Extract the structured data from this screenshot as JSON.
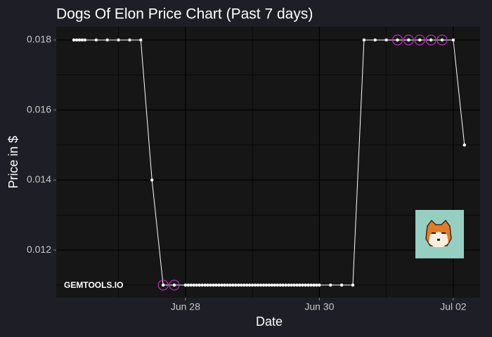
{
  "chart_data": {
    "type": "line",
    "title": "Dogs Of Elon Price Chart (Past 7 days)",
    "x_label": "Date",
    "y_label": "Price in $",
    "watermark": "GEMTOOLS.IO",
    "x": [
      26.333,
      26.375,
      26.417,
      26.458,
      26.5,
      26.667,
      26.833,
      27.0,
      27.167,
      27.333,
      27.5,
      27.667,
      27.833,
      28.0,
      28.042,
      28.083,
      28.125,
      28.167,
      28.208,
      28.25,
      28.292,
      28.333,
      28.375,
      28.417,
      28.458,
      28.5,
      28.542,
      28.583,
      28.625,
      28.667,
      28.708,
      28.75,
      28.792,
      28.833,
      28.875,
      28.917,
      28.958,
      29.0,
      29.042,
      29.083,
      29.125,
      29.167,
      29.208,
      29.25,
      29.292,
      29.333,
      29.375,
      29.417,
      29.458,
      29.5,
      29.542,
      29.583,
      29.625,
      29.667,
      29.708,
      29.75,
      29.792,
      29.833,
      29.875,
      29.917,
      29.958,
      30.0,
      30.167,
      30.333,
      30.5,
      30.667,
      30.833,
      31.0,
      31.167,
      31.333,
      31.5,
      31.667,
      31.833,
      32.0,
      32.167
    ],
    "series": [
      {
        "color": "#ffffff",
        "values": [
          0.018,
          0.018,
          0.018,
          0.018,
          0.018,
          0.018,
          0.018,
          0.018,
          0.018,
          0.018,
          0.014,
          0.011,
          0.011,
          0.011,
          0.011,
          0.011,
          0.011,
          0.011,
          0.011,
          0.011,
          0.011,
          0.011,
          0.011,
          0.011,
          0.011,
          0.011,
          0.011,
          0.011,
          0.011,
          0.011,
          0.011,
          0.011,
          0.011,
          0.011,
          0.011,
          0.011,
          0.011,
          0.011,
          0.011,
          0.011,
          0.011,
          0.011,
          0.011,
          0.011,
          0.011,
          0.011,
          0.011,
          0.011,
          0.011,
          0.011,
          0.011,
          0.011,
          0.011,
          0.011,
          0.011,
          0.011,
          0.011,
          0.011,
          0.011,
          0.011,
          0.011,
          0.011,
          0.011,
          0.011,
          0.011,
          0.018,
          0.018,
          0.018,
          0.018,
          0.018,
          0.018,
          0.018,
          0.018,
          0.018,
          0.015
        ]
      }
    ],
    "highlight_indices": [
      11,
      12,
      68,
      69,
      70,
      71,
      72
    ],
    "highlight_color": "#c030c0",
    "xlim": [
      26.07,
      32.4
    ],
    "ylim": [
      0.01064,
      0.01838
    ],
    "xticks": [
      {
        "value": 28,
        "label": "Jun 28"
      },
      {
        "value": 30,
        "label": "Jun 30"
      },
      {
        "value": 32,
        "label": "Jul 02"
      }
    ],
    "yticks": [
      0.012,
      0.014,
      0.016,
      0.018
    ],
    "x_minor_ticks": [
      27,
      29,
      31
    ],
    "y_minor_ticks": [
      0.011,
      0.013,
      0.015,
      0.017
    ],
    "grid": true
  }
}
